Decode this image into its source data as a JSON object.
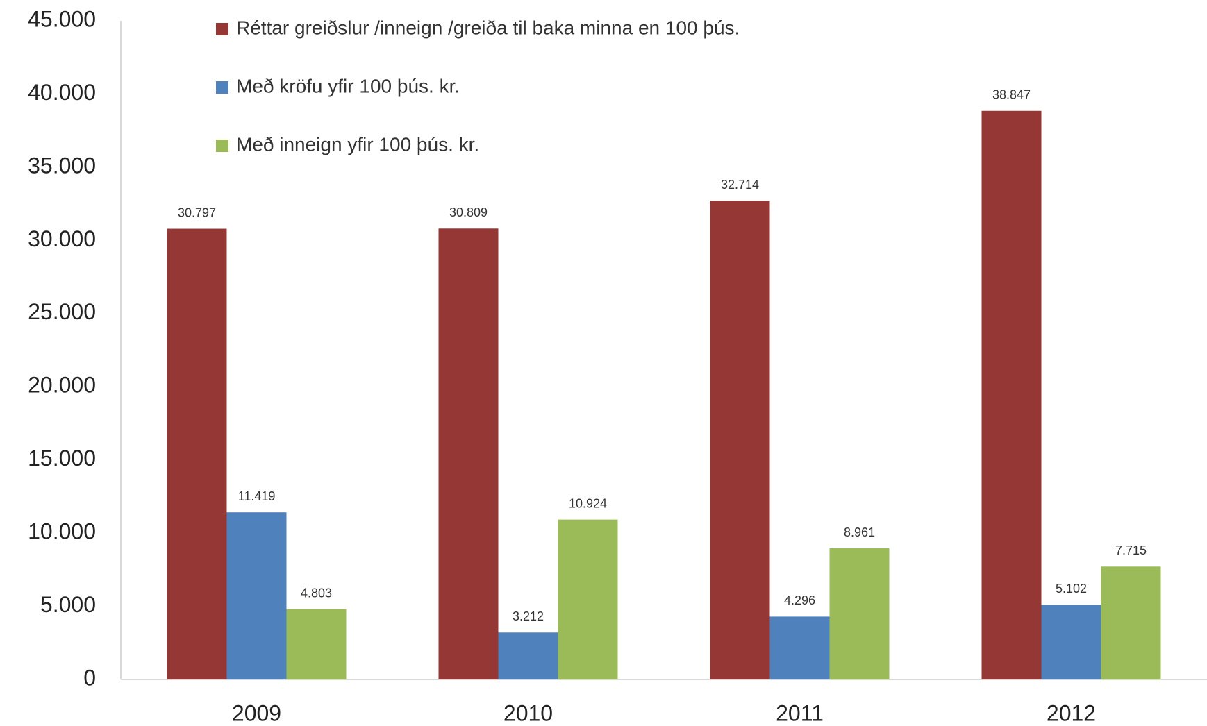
{
  "chart_data": {
    "type": "bar",
    "categories": [
      "2009",
      "2010",
      "2011",
      "2012"
    ],
    "series": [
      {
        "name": "Réttar greiðslur /inneign /greiða til baka minna en 100 þús.",
        "color": "#953735",
        "values": [
          30797,
          30809,
          32714,
          38847
        ],
        "value_labels": [
          "30.797",
          "30.809",
          "32.714",
          "38.847"
        ]
      },
      {
        "name": "Með kröfu yfir 100 þús. kr.",
        "color": "#4f81bd",
        "values": [
          11419,
          3212,
          4296,
          5102
        ],
        "value_labels": [
          "11.419",
          "3.212",
          "4.296",
          "5.102"
        ]
      },
      {
        "name": "Með inneign yfir 100 þús. kr.",
        "color": "#9bbb59",
        "values": [
          4803,
          10924,
          8961,
          7715
        ],
        "value_labels": [
          "4.803",
          "10.924",
          "8.961",
          "7.715"
        ]
      }
    ],
    "ylim": [
      0,
      45000
    ],
    "yticks": [
      0,
      {
        "value": 5000,
        "label": "5.000"
      },
      {
        "value": 10000,
        "label": "10.000"
      },
      {
        "value": 15000,
        "label": "15.000"
      },
      {
        "value": 20000,
        "label": "20.000"
      },
      {
        "value": 25000,
        "label": "25.000"
      },
      {
        "value": 30000,
        "label": "30.000"
      },
      {
        "value": 35000,
        "label": "35.000"
      },
      {
        "value": 40000,
        "label": "40.000"
      },
      {
        "value": 45000,
        "label": "45.000"
      }
    ],
    "legend": "top-left",
    "grid": false
  }
}
